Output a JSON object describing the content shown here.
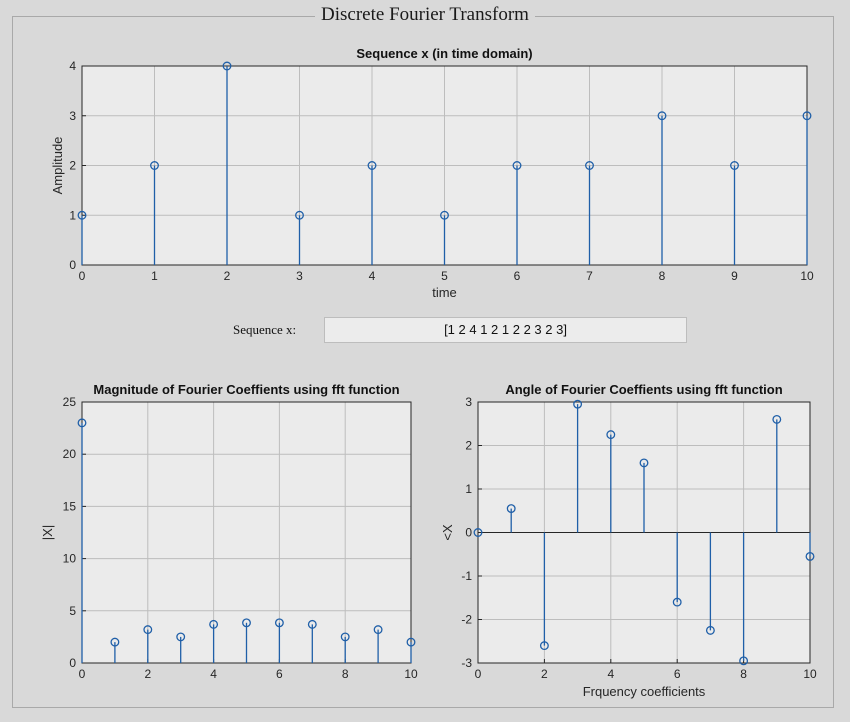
{
  "panel": {
    "title": "Discrete Fourier Transform"
  },
  "sequence_input": {
    "label": "Sequence x:",
    "value": "[1 2 4 1 2 1 2 2 3 2 3]"
  },
  "chart_data": [
    {
      "type": "stem",
      "title": "Sequence x (in time domain)",
      "xlabel": "time",
      "ylabel": "Amplitude",
      "x": [
        0,
        1,
        2,
        3,
        4,
        5,
        6,
        7,
        8,
        9,
        10
      ],
      "y": [
        1,
        2,
        4,
        1,
        2,
        1,
        2,
        2,
        3,
        2,
        3
      ],
      "xlim": [
        0,
        10
      ],
      "ylim": [
        0,
        4
      ],
      "xticks": [
        "0",
        "1",
        "2",
        "3",
        "4",
        "5",
        "6",
        "7",
        "8",
        "9",
        "10"
      ],
      "yticks": [
        "0",
        "1",
        "2",
        "3",
        "4"
      ],
      "grid": true,
      "color": "#1f5fa8"
    },
    {
      "type": "stem",
      "title": "Magnitude of Fourier Coeffients using fft function",
      "xlabel": "",
      "ylabel": "|X|",
      "x": [
        0,
        1,
        2,
        3,
        4,
        5,
        6,
        7,
        8,
        9,
        10
      ],
      "y": [
        23,
        2.0,
        3.2,
        2.5,
        3.7,
        3.85,
        3.85,
        3.7,
        2.5,
        3.2,
        2.0
      ],
      "xlim": [
        0,
        10
      ],
      "ylim": [
        0,
        25
      ],
      "xticks": [
        "0",
        "2",
        "4",
        "6",
        "8",
        "10"
      ],
      "yticks": [
        "0",
        "5",
        "10",
        "15",
        "20",
        "25"
      ],
      "grid": true,
      "color": "#1f5fa8"
    },
    {
      "type": "stem",
      "title": "Angle of Fourier Coeffients using fft function",
      "xlabel": "Frquency coefficients",
      "ylabel": "<X",
      "x": [
        0,
        1,
        2,
        3,
        4,
        5,
        6,
        7,
        8,
        9,
        10
      ],
      "y": [
        0,
        0.55,
        -2.6,
        2.95,
        2.25,
        1.6,
        -1.6,
        -2.25,
        -2.95,
        2.6,
        -0.55
      ],
      "xlim": [
        0,
        10
      ],
      "ylim": [
        -3,
        3
      ],
      "xticks": [
        "0",
        "2",
        "4",
        "6",
        "8",
        "10"
      ],
      "yticks": [
        "-3",
        "-2",
        "-1",
        "0",
        "1",
        "2",
        "3"
      ],
      "grid": true,
      "color": "#1f5fa8"
    }
  ]
}
